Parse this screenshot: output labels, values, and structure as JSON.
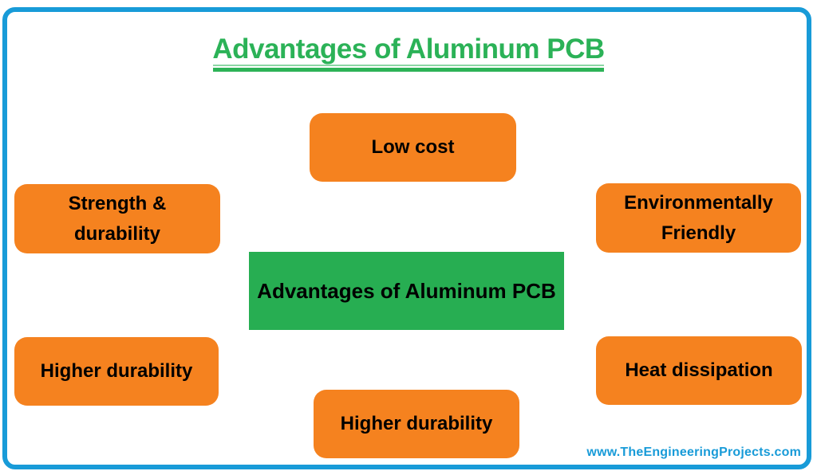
{
  "page": {
    "title": "Advantages of Aluminum PCB",
    "watermark": "www.TheEngineeringProjects.com"
  },
  "diagram": {
    "center": {
      "label": "Advantages of Aluminum PCB"
    },
    "nodes": [
      {
        "id": "low-cost",
        "label": "Low cost",
        "position": "top-center"
      },
      {
        "id": "strength-durability",
        "label": "Strength & durability",
        "position": "middle-left"
      },
      {
        "id": "environmentally-friendly",
        "label": "Environmentally Friendly",
        "position": "middle-right"
      },
      {
        "id": "higher-durability-left",
        "label": "Higher durability",
        "position": "lower-left"
      },
      {
        "id": "heat-dissipation",
        "label": "Heat dissipation",
        "position": "lower-right"
      },
      {
        "id": "higher-durability-bottom",
        "label": "Higher durability",
        "position": "bottom-center"
      }
    ]
  },
  "colors": {
    "node_orange": "#f5821f",
    "node_green": "#27ae52",
    "title_green": "#2bb257",
    "border_blue": "#189bd8",
    "watermark_blue": "#189bd8",
    "text_black": "#000000",
    "background": "#ffffff"
  }
}
